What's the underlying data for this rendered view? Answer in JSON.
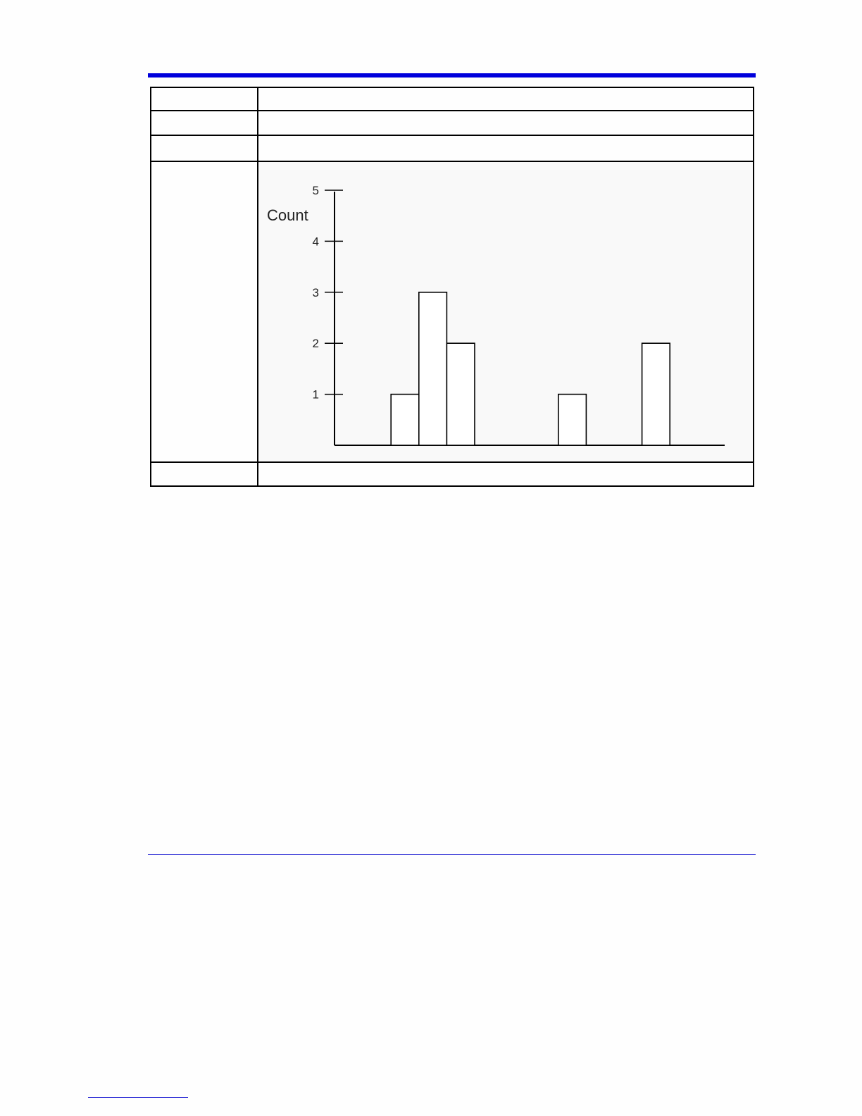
{
  "table": {
    "rows": [
      {
        "label": "",
        "value": ""
      },
      {
        "label": "",
        "value": ""
      },
      {
        "label": "",
        "value": ""
      },
      {
        "label": "",
        "value": ""
      },
      {
        "label": "",
        "value": ""
      }
    ]
  },
  "chart_data": {
    "type": "bar",
    "title": "",
    "xlabel": "",
    "ylabel": "Count",
    "ylim": [
      0,
      5
    ],
    "yticks": [
      1,
      2,
      3,
      4,
      5
    ],
    "bars": [
      {
        "x": 2,
        "value": 1
      },
      {
        "x": 3,
        "value": 3
      },
      {
        "x": 4,
        "value": 2
      },
      {
        "x": 8,
        "value": 1
      },
      {
        "x": 11,
        "value": 2
      }
    ],
    "bar_fill": "#ffffff",
    "bar_stroke": "#000000",
    "grid": false
  },
  "colors": {
    "accent_rule": "#0000dc"
  }
}
